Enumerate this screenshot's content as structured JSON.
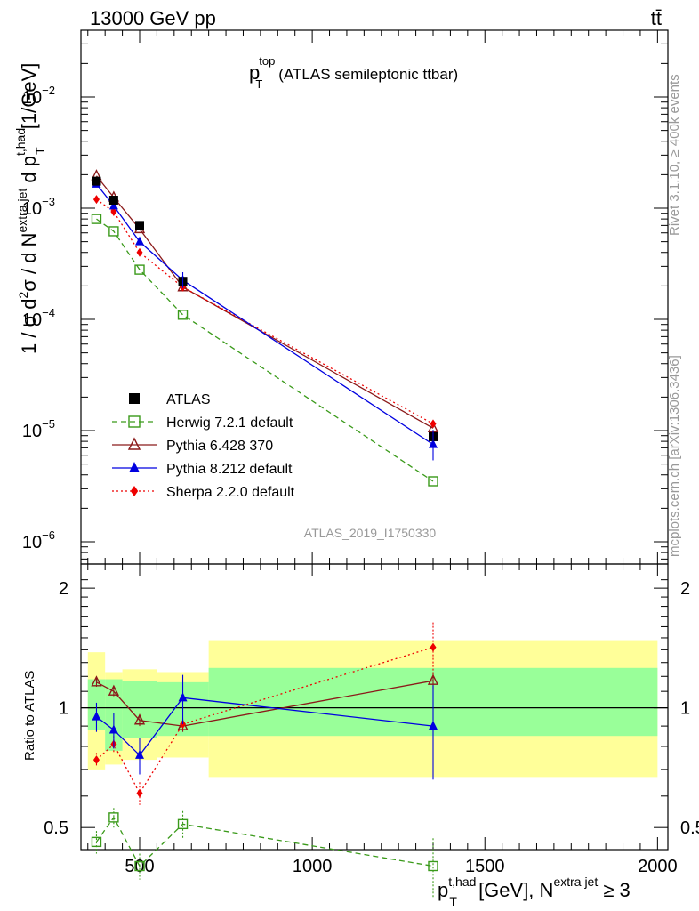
{
  "chart_data": {
    "type": "line",
    "header": {
      "left": "13000 GeV pp",
      "right": "tt̄"
    },
    "title": {
      "main": "p",
      "sup": "top",
      "sub": "T",
      "rest": "(ATLAS semileptonic ttbar)"
    },
    "side_text_top": "Rivet 3.1.10, ≥ 400k events",
    "side_text_bottom": "mcplots.cern.ch [arXiv:1306.3436]",
    "watermark": "ATLAS_2019_I1750330",
    "ylabel": "1 / σ d²σ / d N^{extra jet} d p_T^{t,had} [1/GeV]",
    "ylabel_parts": {
      "a": "1 / σ d",
      "b": "2",
      "c": "σ /  d N",
      "d": "extra jet",
      "e": " d p",
      "f": "t,had",
      "g": "T",
      "h": " [1/GeV]"
    },
    "ratio_ylabel": "Ratio to ATLAS",
    "xlabel_parts": {
      "a": "p",
      "b": "t,had",
      "c": "T",
      "d": " [GeV], N",
      "e": "extra jet",
      "f": " ≥ 3"
    },
    "xlim": [
      330,
      2030
    ],
    "ylim_main_log10": [
      -6.2,
      -1.4
    ],
    "ylim_ratio": [
      0.44,
      2.3
    ],
    "x_ticks": [
      {
        "v": 500,
        "label": "500"
      },
      {
        "v": 1000,
        "label": "1000"
      },
      {
        "v": 1500,
        "label": "1500"
      },
      {
        "v": 2000,
        "label": "2000"
      }
    ],
    "y_major_ticks": [
      {
        "exp": -2,
        "base": "10",
        "sup": "−2"
      },
      {
        "exp": -3,
        "base": "10",
        "sup": "−3"
      },
      {
        "exp": -4,
        "base": "10",
        "sup": "−4"
      },
      {
        "exp": -5,
        "base": "10",
        "sup": "−5"
      },
      {
        "exp": -6,
        "base": "10",
        "sup": "−6"
      }
    ],
    "ratio_ticks": [
      {
        "v": 0.5,
        "label": "0.5"
      },
      {
        "v": 1,
        "label": "1"
      },
      {
        "v": 2,
        "label": "2"
      }
    ],
    "bins": [
      350,
      400,
      450,
      550,
      700,
      2000
    ],
    "band_yellow": [
      [
        0.7,
        1.38
      ],
      [
        0.72,
        1.23
      ],
      [
        0.74,
        1.25
      ],
      [
        0.75,
        1.23
      ],
      [
        0.67,
        1.48
      ]
    ],
    "band_green": [
      [
        0.88,
        1.18
      ],
      [
        0.78,
        1.18
      ],
      [
        0.84,
        1.17
      ],
      [
        0.85,
        1.16
      ],
      [
        0.85,
        1.26
      ]
    ],
    "series": [
      {
        "name": "ATLAS",
        "color": "#000000",
        "marker": "square-filled",
        "dash": "none",
        "x": [
          375,
          425,
          500,
          625,
          1350
        ],
        "y": [
          0.00175,
          0.00118,
          0.0007,
          0.00022,
          8.8e-06
        ],
        "ratio": [
          1,
          1,
          1,
          1,
          1
        ],
        "ratio_err": [
          0,
          0,
          0,
          0,
          0
        ]
      },
      {
        "name": "Herwig 7.2.1 default",
        "color": "#3a9a1a",
        "marker": "square-open",
        "dash": "6,4",
        "x": [
          375,
          425,
          500,
          625,
          1350
        ],
        "y": [
          0.0008,
          0.00062,
          0.00028,
          0.00011,
          3.5e-06
        ],
        "ratio": [
          0.46,
          0.53,
          0.4,
          0.51,
          0.4
        ],
        "ratio_err": [
          0.03,
          0.03,
          0.03,
          0.04,
          0.07
        ]
      },
      {
        "name": "Pythia 6.428 370",
        "color": "#8b1a1a",
        "marker": "triangle-open",
        "dash": "none",
        "x": [
          375,
          425,
          500,
          625,
          1350
        ],
        "y": [
          0.00195,
          0.00125,
          0.00065,
          0.000195,
          1.05e-05
        ],
        "ratio": [
          1.16,
          1.1,
          0.93,
          0.9,
          1.17
        ],
        "ratio_err": [
          0.03,
          0.03,
          0.03,
          0.03,
          0.06
        ]
      },
      {
        "name": "Pythia 8.212 default",
        "color": "#0000e0",
        "marker": "triangle-filled",
        "dash": "none",
        "x": [
          375,
          425,
          500,
          625,
          1350
        ],
        "y": [
          0.00165,
          0.00105,
          0.0005,
          0.000225,
          7.5e-06
        ],
        "ratio": [
          0.95,
          0.88,
          0.76,
          1.06,
          0.9
        ],
        "ratio_err": [
          0.08,
          0.09,
          0.08,
          0.15,
          0.24
        ]
      },
      {
        "name": "Sherpa 2.2.0 default",
        "color": "#ee0000",
        "marker": "diamond-filled",
        "dash": "2,3",
        "x": [
          375,
          425,
          500,
          625,
          1350
        ],
        "y": [
          0.0012,
          0.00093,
          0.0004,
          0.000195,
          1.15e-05
        ],
        "ratio": [
          0.74,
          0.81,
          0.61,
          0.91,
          1.42
        ],
        "ratio_err": [
          0.03,
          0.04,
          0.04,
          0.03,
          0.22
        ]
      }
    ]
  }
}
